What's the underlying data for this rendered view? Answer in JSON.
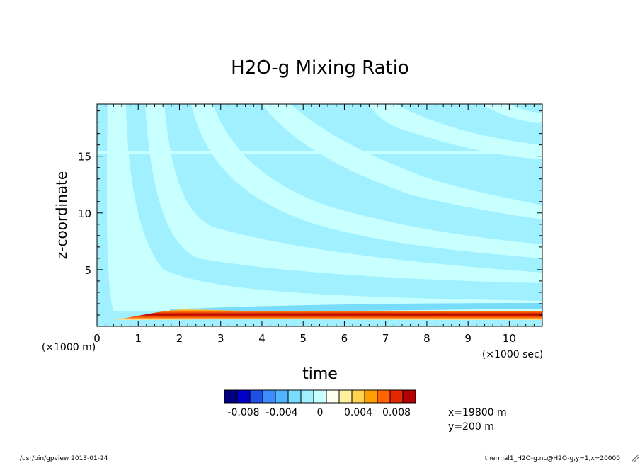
{
  "chart_data": {
    "type": "heatmap",
    "title": "H2O-g Mixing Ratio",
    "xlabel": "time",
    "ylabel": "z-coordinate",
    "x_unit": "(×1000 sec)",
    "y_unit": "(×1000 m)",
    "xlim": [
      0,
      10.8
    ],
    "ylim": [
      0,
      19.6
    ],
    "x_ticks": [
      "0",
      "1",
      "2",
      "3",
      "4",
      "5",
      "6",
      "7",
      "8",
      "9",
      "10"
    ],
    "y_ticks": [
      "5",
      "10",
      "15"
    ],
    "y_tick_values": [
      5,
      10,
      15
    ],
    "colorbar": {
      "levels": 12,
      "range": [
        -0.01,
        0.01
      ],
      "labels": [
        "-0.008",
        "-0.004",
        "0",
        "0.004",
        "0.008"
      ],
      "label_values": [
        -0.008,
        -0.004,
        0,
        0.004,
        0.008
      ],
      "colors": [
        "#000080",
        "#0000c8",
        "#1e50e6",
        "#3c8cff",
        "#50b4ff",
        "#78dcff",
        "#a0f0ff",
        "#c8ffff",
        "#fffff0",
        "#fff0a0",
        "#ffd250",
        "#ffa000",
        "#ff6400",
        "#e62800",
        "#b40000"
      ]
    },
    "features": {
      "moist_layer_z_range": [
        0.6,
        1.4
      ],
      "moist_layer_peak_value": 0.01,
      "tropopause_z": 15.6
    }
  },
  "info": {
    "x_position": "x=19800 m",
    "y_position": "y=200 m"
  },
  "footer": {
    "left": "/usr/bin/gpview  2013-01-24",
    "right": "thermal1_H2O-g.nc@H2O-g,y=1,x=20000"
  },
  "colors": {
    "field_light": "#c8ffff",
    "field_mid": "#a0f0ff",
    "field_cyan": "#78dcff"
  }
}
